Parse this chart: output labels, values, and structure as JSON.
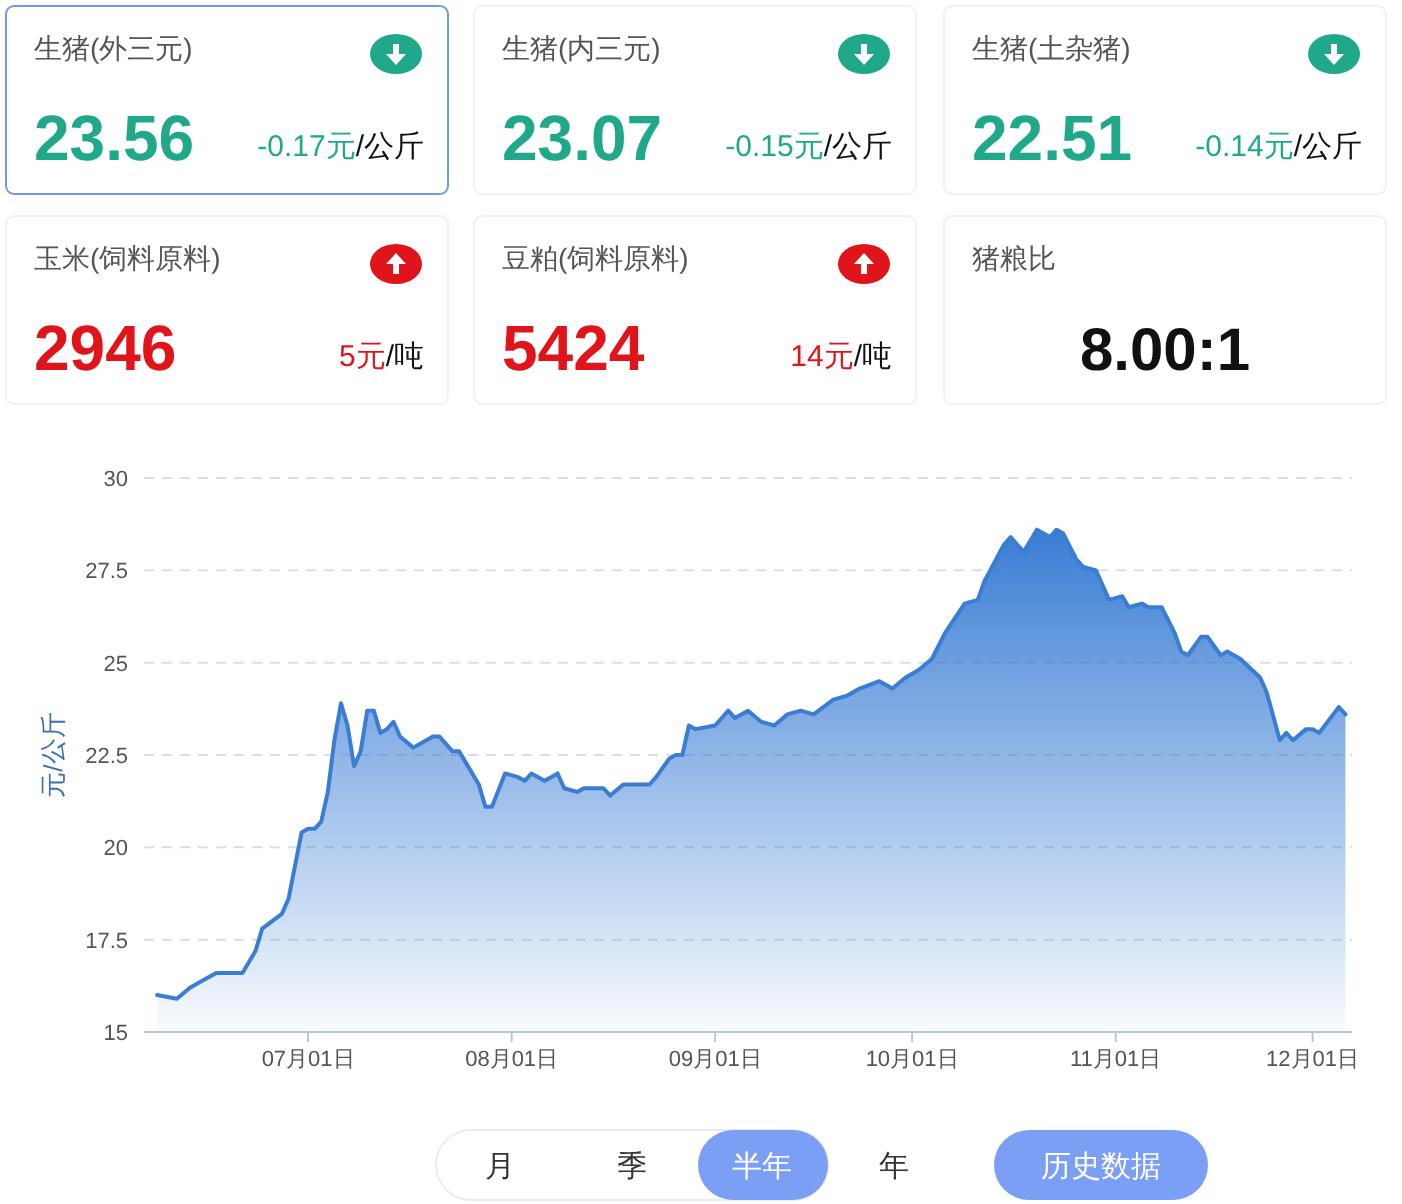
{
  "chart_data": [
    {
      "type": "other",
      "categories": [
        "生猪(外三元)",
        "生猪(内三元)",
        "生猪(土杂猪)",
        "玉米(饲料原料)",
        "豆粕(饲料原料)",
        "猪粮比"
      ],
      "value_labels": [
        "23.56",
        "23.07",
        "22.51",
        "2946",
        "5424",
        "8.00:1"
      ],
      "annotations": [
        "-0.17元/公斤",
        "-0.15元/公斤",
        "-0.14元/公斤",
        "5元/吨",
        "14元/吨"
      ]
    },
    {
      "type": "area",
      "ylabel": "元/公斤",
      "color": "#3a7dd4",
      "grid": "y",
      "xlim": [
        "--06-06",
        "--12-07"
      ],
      "ylim": [
        15,
        30
      ],
      "yticks": [
        15,
        17.5,
        20,
        22.5,
        25,
        27.5,
        30
      ],
      "xticks": [
        {
          "value": "--07-01",
          "label": "07月01日"
        },
        {
          "value": "--08-01",
          "label": "08月01日"
        },
        {
          "value": "--09-01",
          "label": "09月01日"
        },
        {
          "value": "--10-01",
          "label": "10月01日"
        },
        {
          "value": "--11-01",
          "label": "11月01日"
        },
        {
          "value": "--12-01",
          "label": "12月01日"
        }
      ],
      "x": [
        "--06-08",
        "--06-11",
        "--06-13",
        "--06-15",
        "--06-17",
        "--06-19",
        "--06-21",
        "--06-23",
        "--06-24",
        "--06-27",
        "--06-28",
        "--06-30",
        "--07-01",
        "--07-02",
        "--07-03",
        "--07-04",
        "--07-05",
        "--07-06",
        "--07-07",
        "--07-08",
        "--07-09",
        "--07-10",
        "--07-11",
        "--07-12",
        "--07-13",
        "--07-14",
        "--07-15",
        "--07-17",
        "--07-18",
        "--07-20",
        "--07-21",
        "--07-23",
        "--07-24",
        "--07-25",
        "--07-27",
        "--07-28",
        "--07-29",
        "--07-31",
        "--08-02",
        "--08-03",
        "--08-04",
        "--08-06",
        "--08-07",
        "--08-08",
        "--08-09",
        "--08-11",
        "--08-12",
        "--08-13",
        "--08-15",
        "--08-16",
        "--08-18",
        "--08-20",
        "--08-22",
        "--08-23",
        "--08-25",
        "--08-26",
        "--08-27",
        "--08-28",
        "--08-29",
        "--09-01",
        "--09-03",
        "--09-04",
        "--09-06",
        "--09-08",
        "--09-10",
        "--09-12",
        "--09-14",
        "--09-16",
        "--09-19",
        "--09-21",
        "--09-23",
        "--09-26",
        "--09-28",
        "--09-30",
        "--10-02",
        "--10-04",
        "--10-06",
        "--10-09",
        "--10-11",
        "--10-12",
        "--10-15",
        "--10-16",
        "--10-18",
        "--10-20",
        "--10-22",
        "--10-23",
        "--10-24",
        "--10-26",
        "--10-27",
        "--10-29",
        "--10-31",
        "--11-02",
        "--11-03",
        "--11-05",
        "--11-06",
        "--11-08",
        "--11-10",
        "--11-11",
        "--11-12",
        "--11-14",
        "--11-15",
        "--11-17",
        "--11-18",
        "--11-20",
        "--11-23",
        "--11-24",
        "--11-26",
        "--11-27",
        "--11-28",
        "--11-30",
        "--12-01",
        "--12-02",
        "--12-05",
        "--12-06"
      ],
      "values": [
        16.0,
        15.9,
        16.2,
        16.4,
        16.6,
        16.6,
        16.6,
        17.2,
        17.8,
        18.2,
        18.6,
        20.4,
        20.5,
        20.5,
        20.7,
        21.5,
        22.9,
        23.9,
        23.3,
        22.2,
        22.6,
        23.7,
        23.7,
        23.1,
        23.2,
        23.4,
        23.0,
        22.7,
        22.8,
        23.0,
        23.0,
        22.6,
        22.6,
        22.3,
        21.7,
        21.1,
        21.1,
        22.0,
        21.9,
        21.8,
        22.0,
        21.8,
        21.9,
        22.0,
        21.6,
        21.5,
        21.6,
        21.6,
        21.6,
        21.4,
        21.7,
        21.7,
        21.7,
        21.9,
        22.4,
        22.5,
        22.5,
        23.3,
        23.2,
        23.3,
        23.7,
        23.5,
        23.7,
        23.4,
        23.3,
        23.6,
        23.7,
        23.6,
        24.0,
        24.1,
        24.3,
        24.5,
        24.3,
        24.6,
        24.8,
        25.1,
        25.8,
        26.6,
        26.7,
        27.2,
        28.2,
        28.4,
        28.0,
        28.6,
        28.4,
        28.6,
        28.5,
        27.8,
        27.6,
        27.5,
        26.7,
        26.8,
        26.5,
        26.6,
        26.5,
        26.5,
        25.8,
        25.3,
        25.2,
        25.7,
        25.7,
        25.2,
        25.3,
        25.1,
        24.6,
        24.2,
        22.9,
        23.1,
        22.9,
        23.2,
        23.2,
        23.1,
        23.8,
        23.6
      ]
    },
    {
      "type": "other",
      "annotations": [
        "月",
        "季",
        "半年",
        "年",
        "历史数据"
      ]
    }
  ]
}
